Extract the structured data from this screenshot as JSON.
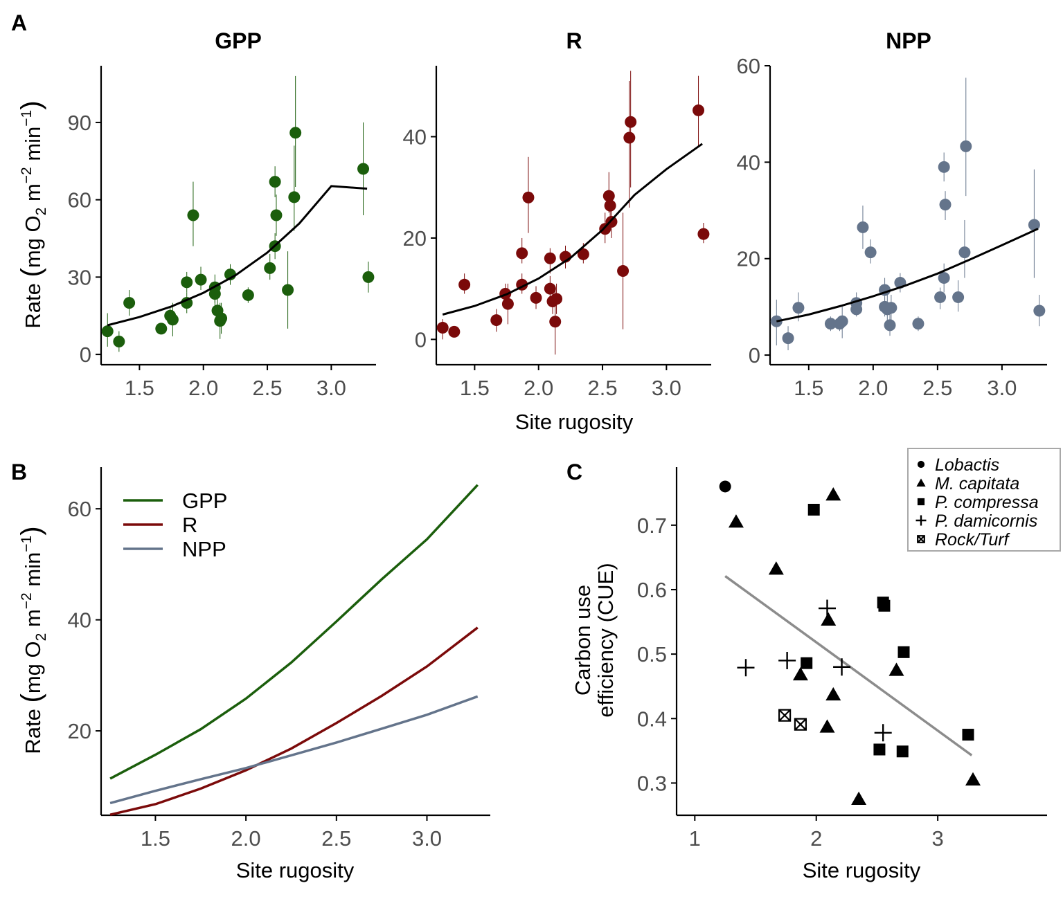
{
  "colors": {
    "gpp": "#1b5e0c",
    "r": "#7b0a0a",
    "npp": "#64748b",
    "cue_line": "#8c8c8c",
    "axis": "#000000",
    "tick_text": "#4d4d4d"
  },
  "chart_data": [
    {
      "panel": "A",
      "type": "scatter",
      "title": "GPP",
      "ylabel": "Rate (mg O2 m−2 min−1)",
      "xlabel": "",
      "xlim": [
        1.2,
        3.35
      ],
      "ylim": [
        -4,
        112
      ],
      "xticks": [
        "1.5",
        "2.0",
        "2.5",
        "3.0"
      ],
      "yticks": [
        "0",
        "30",
        "60",
        "90"
      ],
      "points": [
        {
          "x": 1.25,
          "y": 9,
          "lo": 3,
          "hi": 16
        },
        {
          "x": 1.34,
          "y": 5,
          "lo": 1,
          "hi": 9
        },
        {
          "x": 1.42,
          "y": 20,
          "lo": 15,
          "hi": 25
        },
        {
          "x": 1.67,
          "y": 10,
          "lo": 8,
          "hi": 12
        },
        {
          "x": 1.74,
          "y": 15,
          "lo": 12,
          "hi": 18
        },
        {
          "x": 1.76,
          "y": 13.5,
          "lo": 7,
          "hi": 20
        },
        {
          "x": 1.87,
          "y": 28,
          "lo": 24,
          "hi": 32
        },
        {
          "x": 1.87,
          "y": 20,
          "lo": 16,
          "hi": 24
        },
        {
          "x": 1.92,
          "y": 54,
          "lo": 42,
          "hi": 67
        },
        {
          "x": 1.98,
          "y": 29,
          "lo": 25,
          "hi": 34
        },
        {
          "x": 2.09,
          "y": 26,
          "lo": 20,
          "hi": 31
        },
        {
          "x": 2.09,
          "y": 23.5,
          "lo": 19,
          "hi": 28
        },
        {
          "x": 2.11,
          "y": 17,
          "lo": 12,
          "hi": 22
        },
        {
          "x": 2.13,
          "y": 13,
          "lo": 6,
          "hi": 20
        },
        {
          "x": 2.14,
          "y": 14,
          "lo": 8,
          "hi": 20
        },
        {
          "x": 2.21,
          "y": 31,
          "lo": 27,
          "hi": 35
        },
        {
          "x": 2.35,
          "y": 23,
          "lo": 20,
          "hi": 26
        },
        {
          "x": 2.52,
          "y": 33.5,
          "lo": 29,
          "hi": 39
        },
        {
          "x": 2.56,
          "y": 67,
          "lo": 61,
          "hi": 73
        },
        {
          "x": 2.57,
          "y": 54,
          "lo": 46,
          "hi": 62
        },
        {
          "x": 2.56,
          "y": 42,
          "lo": 37,
          "hi": 47
        },
        {
          "x": 2.66,
          "y": 25,
          "lo": 10,
          "hi": 40
        },
        {
          "x": 2.71,
          "y": 61,
          "lo": 48,
          "hi": 81
        },
        {
          "x": 2.72,
          "y": 86,
          "lo": 65,
          "hi": 108
        },
        {
          "x": 3.25,
          "y": 72,
          "lo": 54,
          "hi": 90
        },
        {
          "x": 3.29,
          "y": 30,
          "lo": 24,
          "hi": 36
        }
      ],
      "fit": [
        [
          1.25,
          11.3
        ],
        [
          1.5,
          14.5
        ],
        [
          1.75,
          18.6
        ],
        [
          2.0,
          23.9
        ],
        [
          2.25,
          30.7
        ],
        [
          2.5,
          39.5
        ],
        [
          2.75,
          50.8
        ],
        [
          3.0,
          65.3
        ],
        [
          3.28,
          64.3
        ]
      ]
    },
    {
      "panel": "A",
      "type": "scatter",
      "title": "R",
      "ylabel": "",
      "xlabel": "Site rugosity",
      "xlim": [
        1.2,
        3.35
      ],
      "ylim": [
        -5,
        54
      ],
      "xticks": [
        "1.5",
        "2.0",
        "2.5",
        "3.0"
      ],
      "yticks": [
        "0",
        "20",
        "40"
      ],
      "points": [
        {
          "x": 1.25,
          "y": 2.3,
          "lo": 0,
          "hi": 4
        },
        {
          "x": 1.34,
          "y": 1.5,
          "lo": 1,
          "hi": 2
        },
        {
          "x": 1.42,
          "y": 10.8,
          "lo": 9,
          "hi": 13
        },
        {
          "x": 1.67,
          "y": 3.8,
          "lo": 1.5,
          "hi": 6
        },
        {
          "x": 1.74,
          "y": 9,
          "lo": 7,
          "hi": 11
        },
        {
          "x": 1.76,
          "y": 7,
          "lo": 3,
          "hi": 11
        },
        {
          "x": 1.87,
          "y": 17,
          "lo": 15,
          "hi": 20
        },
        {
          "x": 1.87,
          "y": 10.8,
          "lo": 9,
          "hi": 13
        },
        {
          "x": 1.92,
          "y": 28,
          "lo": 21,
          "hi": 36
        },
        {
          "x": 1.98,
          "y": 8.2,
          "lo": 6,
          "hi": 10.5
        },
        {
          "x": 2.09,
          "y": 16,
          "lo": 13,
          "hi": 18
        },
        {
          "x": 2.09,
          "y": 10,
          "lo": 7.5,
          "hi": 12.5
        },
        {
          "x": 2.11,
          "y": 7.5,
          "lo": 5,
          "hi": 10
        },
        {
          "x": 2.13,
          "y": 3.5,
          "lo": -3,
          "hi": 10
        },
        {
          "x": 2.14,
          "y": 8,
          "lo": 5,
          "hi": 11
        },
        {
          "x": 2.21,
          "y": 16.3,
          "lo": 14,
          "hi": 18.5
        },
        {
          "x": 2.35,
          "y": 16.8,
          "lo": 15,
          "hi": 19
        },
        {
          "x": 2.52,
          "y": 21.8,
          "lo": 19,
          "hi": 25
        },
        {
          "x": 2.55,
          "y": 28.3,
          "lo": 25,
          "hi": 33
        },
        {
          "x": 2.56,
          "y": 26.4,
          "lo": 23,
          "hi": 29
        },
        {
          "x": 2.57,
          "y": 23.2,
          "lo": 20,
          "hi": 27
        },
        {
          "x": 2.66,
          "y": 13.5,
          "lo": 2,
          "hi": 25
        },
        {
          "x": 2.71,
          "y": 39.8,
          "lo": 26,
          "hi": 51
        },
        {
          "x": 2.72,
          "y": 42.9,
          "lo": 30,
          "hi": 53
        },
        {
          "x": 3.25,
          "y": 45.2,
          "lo": 38,
          "hi": 52
        },
        {
          "x": 3.29,
          "y": 20.8,
          "lo": 19,
          "hi": 23
        }
      ],
      "fit": [
        [
          1.25,
          4.9
        ],
        [
          1.5,
          6.6
        ],
        [
          1.75,
          8.9
        ],
        [
          2.0,
          12.0
        ],
        [
          2.25,
          16.1
        ],
        [
          2.5,
          21.6
        ],
        [
          2.75,
          28.5
        ],
        [
          3.0,
          33.6
        ],
        [
          3.28,
          38.6
        ]
      ]
    },
    {
      "panel": "A",
      "type": "scatter",
      "title": "NPP",
      "ylabel": "",
      "xlabel": "",
      "xlim": [
        1.2,
        3.35
      ],
      "ylim": [
        -2,
        60
      ],
      "xticks": [
        "1.5",
        "2.0",
        "2.5",
        "3.0"
      ],
      "yticks": [
        "0",
        "20",
        "40",
        "60"
      ],
      "points": [
        {
          "x": 1.25,
          "y": 7,
          "lo": 2,
          "hi": 11.5
        },
        {
          "x": 1.34,
          "y": 3.5,
          "lo": 1,
          "hi": 6
        },
        {
          "x": 1.42,
          "y": 9.8,
          "lo": 7,
          "hi": 13
        },
        {
          "x": 1.67,
          "y": 6.5,
          "lo": 5,
          "hi": 8
        },
        {
          "x": 1.74,
          "y": 6.5,
          "lo": 5,
          "hi": 8
        },
        {
          "x": 1.76,
          "y": 7,
          "lo": 3.5,
          "hi": 10
        },
        {
          "x": 1.87,
          "y": 10.8,
          "lo": 9,
          "hi": 13
        },
        {
          "x": 1.87,
          "y": 9.5,
          "lo": 8,
          "hi": 11
        },
        {
          "x": 1.92,
          "y": 26.5,
          "lo": 22,
          "hi": 31
        },
        {
          "x": 1.98,
          "y": 21.3,
          "lo": 19,
          "hi": 24
        },
        {
          "x": 2.09,
          "y": 13.5,
          "lo": 11,
          "hi": 16
        },
        {
          "x": 2.09,
          "y": 10,
          "lo": 8,
          "hi": 12
        },
        {
          "x": 2.11,
          "y": 9.5,
          "lo": 6,
          "hi": 13
        },
        {
          "x": 2.13,
          "y": 6.2,
          "lo": 4,
          "hi": 8.5
        },
        {
          "x": 2.14,
          "y": 9.8,
          "lo": 7,
          "hi": 12.5
        },
        {
          "x": 2.21,
          "y": 15,
          "lo": 13,
          "hi": 17
        },
        {
          "x": 2.35,
          "y": 6.5,
          "lo": 5,
          "hi": 8
        },
        {
          "x": 2.52,
          "y": 12,
          "lo": 9.5,
          "hi": 14
        },
        {
          "x": 2.55,
          "y": 39,
          "lo": 36,
          "hi": 42
        },
        {
          "x": 2.56,
          "y": 31.2,
          "lo": 28,
          "hi": 34
        },
        {
          "x": 2.55,
          "y": 16,
          "lo": 13,
          "hi": 19
        },
        {
          "x": 2.66,
          "y": 12,
          "lo": 9,
          "hi": 15.5
        },
        {
          "x": 2.71,
          "y": 21.3,
          "lo": 16,
          "hi": 28
        },
        {
          "x": 2.72,
          "y": 43.3,
          "lo": 33,
          "hi": 57.5
        },
        {
          "x": 3.25,
          "y": 27,
          "lo": 16,
          "hi": 38.5
        },
        {
          "x": 3.29,
          "y": 9.2,
          "lo": 6,
          "hi": 12.5
        }
      ],
      "fit": [
        [
          1.25,
          7.0
        ],
        [
          1.5,
          8.4
        ],
        [
          1.75,
          10.2
        ],
        [
          2.0,
          12.2
        ],
        [
          2.25,
          14.4
        ],
        [
          2.5,
          16.9
        ],
        [
          2.75,
          19.8
        ],
        [
          3.0,
          22.8
        ],
        [
          3.28,
          26.2
        ]
      ]
    },
    {
      "panel": "B",
      "type": "line",
      "ylabel": "Rate (mg O2 m−2 min−1)",
      "xlabel": "Site rugosity",
      "xlim": [
        1.2,
        3.35
      ],
      "ylim": [
        4.8,
        67.5
      ],
      "xticks": [
        "1.5",
        "2.0",
        "2.5",
        "3.0"
      ],
      "yticks": [
        "20",
        "40",
        "60"
      ],
      "legend_position": "top-left",
      "x": [
        1.25,
        1.5,
        1.75,
        2.0,
        2.25,
        2.5,
        2.75,
        3.0,
        3.28
      ],
      "series": [
        {
          "name": "GPP",
          "values": [
            11.4,
            15.7,
            20.3,
            25.8,
            32.3,
            39.7,
            47.3,
            54.5,
            64.3
          ]
        },
        {
          "name": "R",
          "values": [
            4.9,
            6.8,
            9.6,
            12.9,
            16.8,
            21.4,
            26.3,
            31.6,
            38.6
          ]
        },
        {
          "name": "NPP",
          "values": [
            7.0,
            9.2,
            11.3,
            13.3,
            15.6,
            17.9,
            20.4,
            22.9,
            26.2
          ]
        }
      ]
    },
    {
      "panel": "C",
      "type": "scatter",
      "ylabel": "Carbon use efficiency (CUE)",
      "xlabel": "Site rugosity",
      "xlim": [
        0.85,
        3.9
      ],
      "ylim": [
        0.25,
        0.79
      ],
      "xticks": [
        "1",
        "2",
        "3"
      ],
      "yticks": [
        "0.3",
        "0.4",
        "0.5",
        "0.6",
        "0.7"
      ],
      "legend_position": "top-right",
      "legend": [
        "Lobactis",
        "M. capitata",
        "P. compressa",
        "P. damicornis",
        "Rock/Turf"
      ],
      "points": [
        {
          "x": 1.25,
          "y": 0.76,
          "group": "Lobactis"
        },
        {
          "x": 1.34,
          "y": 0.705,
          "group": "M. capitata"
        },
        {
          "x": 2.14,
          "y": 0.747,
          "group": "M. capitata"
        },
        {
          "x": 1.67,
          "y": 0.632,
          "group": "M. capitata"
        },
        {
          "x": 2.1,
          "y": 0.553,
          "group": "M. capitata"
        },
        {
          "x": 1.87,
          "y": 0.468,
          "group": "M. capitata"
        },
        {
          "x": 2.66,
          "y": 0.475,
          "group": "M. capitata"
        },
        {
          "x": 2.14,
          "y": 0.437,
          "group": "M. capitata"
        },
        {
          "x": 2.09,
          "y": 0.387,
          "group": "M. capitata"
        },
        {
          "x": 2.35,
          "y": 0.275,
          "group": "M. capitata"
        },
        {
          "x": 3.29,
          "y": 0.305,
          "group": "M. capitata"
        },
        {
          "x": 1.98,
          "y": 0.724,
          "group": "P. compressa"
        },
        {
          "x": 2.55,
          "y": 0.58,
          "group": "P. compressa"
        },
        {
          "x": 2.56,
          "y": 0.575,
          "group": "P. compressa"
        },
        {
          "x": 1.92,
          "y": 0.486,
          "group": "P. compressa"
        },
        {
          "x": 2.72,
          "y": 0.503,
          "group": "P. compressa"
        },
        {
          "x": 3.25,
          "y": 0.375,
          "group": "P. compressa"
        },
        {
          "x": 2.52,
          "y": 0.352,
          "group": "P. compressa"
        },
        {
          "x": 2.71,
          "y": 0.349,
          "group": "P. compressa"
        },
        {
          "x": 2.09,
          "y": 0.571,
          "group": "P. damicornis"
        },
        {
          "x": 1.42,
          "y": 0.479,
          "group": "P. damicornis"
        },
        {
          "x": 1.76,
          "y": 0.49,
          "group": "P. damicornis"
        },
        {
          "x": 2.21,
          "y": 0.48,
          "group": "P. damicornis"
        },
        {
          "x": 2.55,
          "y": 0.378,
          "group": "P. damicornis"
        },
        {
          "x": 1.74,
          "y": 0.405,
          "group": "Rock/Turf"
        },
        {
          "x": 1.87,
          "y": 0.391,
          "group": "Rock/Turf"
        }
      ],
      "fit": [
        [
          1.25,
          0.621
        ],
        [
          3.28,
          0.343
        ]
      ]
    }
  ],
  "labels": {
    "tag_a": "A",
    "tag_b": "B",
    "tag_c": "C",
    "gpp_title": "GPP",
    "r_title": "R",
    "npp_title": "NPP",
    "rate_label_main": "Rate ",
    "rate_label_unit": "mg O",
    "rate_label_sub": "2",
    "rate_label_m": " m",
    "rate_label_sup1": "−2",
    "rate_label_min": " min",
    "rate_label_sup2": "−1",
    "site_rugosity": "Site rugosity",
    "cue_line1": "Carbon use",
    "cue_line2": "efficiency (CUE)"
  }
}
